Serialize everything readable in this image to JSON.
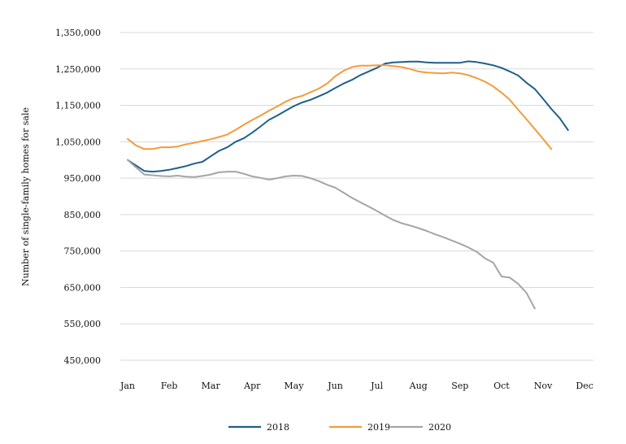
{
  "chart_data": {
    "type": "line",
    "title": "",
    "xlabel": "",
    "ylabel": "Number of single-family homes for sale",
    "categories": [
      "Jan",
      "Feb",
      "Mar",
      "Apr",
      "May",
      "Jun",
      "Jul",
      "Aug",
      "Sep",
      "Oct",
      "Nov",
      "Dec"
    ],
    "ylim": [
      450000,
      1350000
    ],
    "yticks": [
      450000,
      550000,
      650000,
      750000,
      850000,
      950000,
      1050000,
      1150000,
      1250000,
      1350000
    ],
    "ytick_labels": [
      "450,000",
      "550,000",
      "650,000",
      "750,000",
      "850,000",
      "950,000",
      "1,050,000",
      "1,150,000",
      "1,250,000",
      "1,350,000"
    ],
    "grid": true,
    "legend_position": "bottom",
    "series": [
      {
        "name": "2018",
        "color": "#1f5f8b",
        "points": [
          [
            0.0,
            1000000
          ],
          [
            0.2,
            985000
          ],
          [
            0.4,
            970000
          ],
          [
            0.6,
            968000
          ],
          [
            0.8,
            970000
          ],
          [
            1.0,
            973000
          ],
          [
            1.2,
            978000
          ],
          [
            1.4,
            983000
          ],
          [
            1.6,
            990000
          ],
          [
            1.8,
            995000
          ],
          [
            2.0,
            1010000
          ],
          [
            2.2,
            1025000
          ],
          [
            2.4,
            1035000
          ],
          [
            2.6,
            1050000
          ],
          [
            2.8,
            1060000
          ],
          [
            3.0,
            1075000
          ],
          [
            3.2,
            1092000
          ],
          [
            3.4,
            1110000
          ],
          [
            3.6,
            1122000
          ],
          [
            3.8,
            1135000
          ],
          [
            4.0,
            1148000
          ],
          [
            4.2,
            1158000
          ],
          [
            4.4,
            1165000
          ],
          [
            4.6,
            1175000
          ],
          [
            4.8,
            1185000
          ],
          [
            5.0,
            1198000
          ],
          [
            5.2,
            1210000
          ],
          [
            5.4,
            1220000
          ],
          [
            5.6,
            1233000
          ],
          [
            5.8,
            1243000
          ],
          [
            6.0,
            1253000
          ],
          [
            6.2,
            1265000
          ],
          [
            6.4,
            1268000
          ],
          [
            6.6,
            1269000
          ],
          [
            6.8,
            1270000
          ],
          [
            7.0,
            1270000
          ],
          [
            7.2,
            1268000
          ],
          [
            7.4,
            1267000
          ],
          [
            7.6,
            1267000
          ],
          [
            7.8,
            1267000
          ],
          [
            8.0,
            1267000
          ],
          [
            8.2,
            1271000
          ],
          [
            8.4,
            1269000
          ],
          [
            8.6,
            1265000
          ],
          [
            8.8,
            1260000
          ],
          [
            9.0,
            1253000
          ],
          [
            9.2,
            1243000
          ],
          [
            9.4,
            1232000
          ],
          [
            9.6,
            1212000
          ],
          [
            9.8,
            1195000
          ],
          [
            10.0,
            1168000
          ],
          [
            10.2,
            1140000
          ],
          [
            10.4,
            1115000
          ],
          [
            10.6,
            1082000
          ]
        ]
      },
      {
        "name": "2019",
        "color": "#f39c3d",
        "points": [
          [
            0.0,
            1058000
          ],
          [
            0.2,
            1040000
          ],
          [
            0.4,
            1030000
          ],
          [
            0.6,
            1030000
          ],
          [
            0.8,
            1035000
          ],
          [
            1.0,
            1035000
          ],
          [
            1.2,
            1037000
          ],
          [
            1.4,
            1043000
          ],
          [
            1.6,
            1047000
          ],
          [
            1.8,
            1052000
          ],
          [
            2.0,
            1057000
          ],
          [
            2.2,
            1063000
          ],
          [
            2.4,
            1070000
          ],
          [
            2.6,
            1083000
          ],
          [
            2.8,
            1097000
          ],
          [
            3.0,
            1110000
          ],
          [
            3.2,
            1122000
          ],
          [
            3.4,
            1135000
          ],
          [
            3.6,
            1147000
          ],
          [
            3.8,
            1160000
          ],
          [
            4.0,
            1170000
          ],
          [
            4.2,
            1176000
          ],
          [
            4.4,
            1186000
          ],
          [
            4.6,
            1196000
          ],
          [
            4.8,
            1210000
          ],
          [
            5.0,
            1230000
          ],
          [
            5.2,
            1245000
          ],
          [
            5.4,
            1255000
          ],
          [
            5.6,
            1259000
          ],
          [
            5.8,
            1259000
          ],
          [
            6.0,
            1260000
          ],
          [
            6.2,
            1260000
          ],
          [
            6.4,
            1258000
          ],
          [
            6.6,
            1255000
          ],
          [
            6.8,
            1250000
          ],
          [
            7.0,
            1243000
          ],
          [
            7.2,
            1240000
          ],
          [
            7.4,
            1239000
          ],
          [
            7.6,
            1238000
          ],
          [
            7.8,
            1240000
          ],
          [
            8.0,
            1238000
          ],
          [
            8.2,
            1233000
          ],
          [
            8.4,
            1225000
          ],
          [
            8.6,
            1215000
          ],
          [
            8.8,
            1202000
          ],
          [
            9.0,
            1185000
          ],
          [
            9.2,
            1165000
          ],
          [
            9.4,
            1138000
          ],
          [
            9.6,
            1112000
          ],
          [
            9.8,
            1085000
          ],
          [
            10.0,
            1058000
          ],
          [
            10.2,
            1030000
          ]
        ]
      },
      {
        "name": "2020",
        "color": "#a5a5a5",
        "points": [
          [
            0.0,
            1000000
          ],
          [
            0.2,
            980000
          ],
          [
            0.4,
            960000
          ],
          [
            0.6,
            958000
          ],
          [
            0.8,
            956000
          ],
          [
            1.0,
            955000
          ],
          [
            1.2,
            957000
          ],
          [
            1.4,
            954000
          ],
          [
            1.6,
            953000
          ],
          [
            1.8,
            956000
          ],
          [
            2.0,
            960000
          ],
          [
            2.2,
            966000
          ],
          [
            2.4,
            968000
          ],
          [
            2.6,
            968000
          ],
          [
            2.8,
            962000
          ],
          [
            3.0,
            955000
          ],
          [
            3.2,
            951000
          ],
          [
            3.4,
            946000
          ],
          [
            3.6,
            950000
          ],
          [
            3.8,
            955000
          ],
          [
            4.0,
            957000
          ],
          [
            4.2,
            956000
          ],
          [
            4.4,
            950000
          ],
          [
            4.6,
            942000
          ],
          [
            4.8,
            932000
          ],
          [
            5.0,
            924000
          ],
          [
            5.2,
            910000
          ],
          [
            5.4,
            896000
          ],
          [
            5.6,
            884000
          ],
          [
            5.8,
            872000
          ],
          [
            6.0,
            860000
          ],
          [
            6.2,
            847000
          ],
          [
            6.4,
            835000
          ],
          [
            6.6,
            826000
          ],
          [
            6.8,
            820000
          ],
          [
            7.0,
            813000
          ],
          [
            7.2,
            805000
          ],
          [
            7.4,
            796000
          ],
          [
            7.6,
            788000
          ],
          [
            7.8,
            779000
          ],
          [
            8.0,
            770000
          ],
          [
            8.2,
            760000
          ],
          [
            8.4,
            748000
          ],
          [
            8.6,
            730000
          ],
          [
            8.8,
            718000
          ],
          [
            9.0,
            680000
          ],
          [
            9.2,
            677000
          ],
          [
            9.4,
            660000
          ],
          [
            9.6,
            635000
          ],
          [
            9.8,
            592000
          ]
        ]
      }
    ]
  }
}
